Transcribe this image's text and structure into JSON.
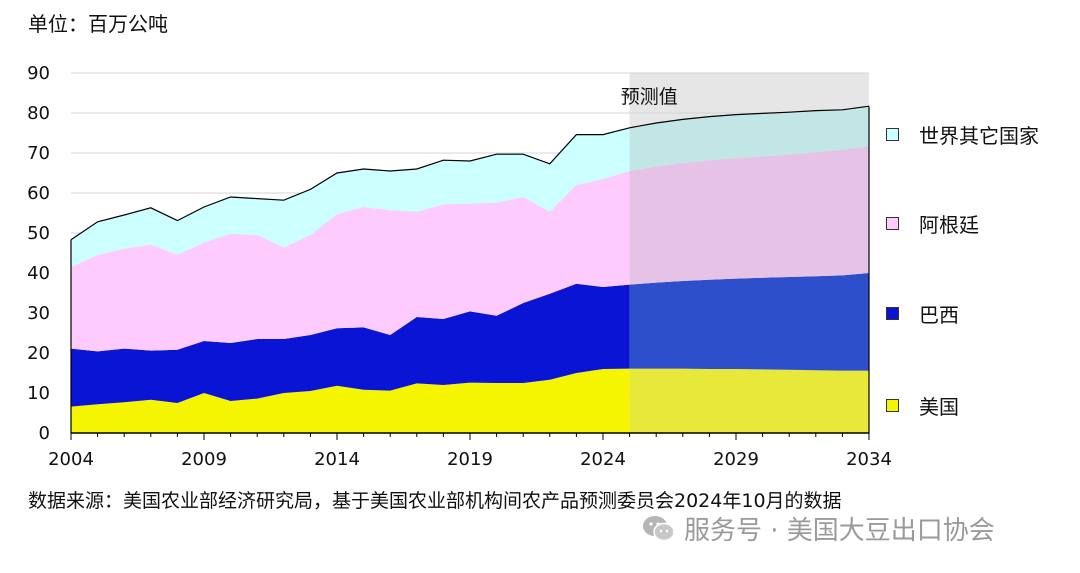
{
  "unit_label": "单位：百万公吨",
  "source_text": "数据来源：美国农业部经济研究局，基于美国农业部机构间农产品预测委员会2024年10月的数据",
  "watermark": {
    "text": "服务号 · 美国大豆出口协会",
    "icon": "wechat-icon"
  },
  "chart_data": {
    "type": "area",
    "stacked": true,
    "title": "",
    "unit": "单位：百万公吨",
    "x": [
      2004,
      2005,
      2006,
      2007,
      2008,
      2009,
      2010,
      2011,
      2012,
      2013,
      2014,
      2015,
      2016,
      2017,
      2018,
      2019,
      2020,
      2021,
      2022,
      2023,
      2024,
      2025,
      2026,
      2027,
      2028,
      2029,
      2030,
      2031,
      2032,
      2033,
      2034
    ],
    "xticks": [
      2004,
      2009,
      2014,
      2019,
      2024,
      2029,
      2034
    ],
    "yticks": [
      0,
      10,
      20,
      30,
      40,
      50,
      60,
      70,
      80,
      90
    ],
    "ylim": [
      0,
      90
    ],
    "xlim": [
      2004,
      2034
    ],
    "projection": {
      "label": "预测值",
      "start": 2025,
      "end": 2034
    },
    "series": [
      {
        "name": "美国",
        "color": "#f5f500",
        "proj_color": "#e8e83a",
        "values": [
          6.6,
          7.2,
          7.7,
          8.3,
          7.5,
          10.0,
          8.0,
          8.6,
          10.0,
          10.5,
          11.8,
          10.8,
          10.6,
          12.4,
          12.0,
          12.6,
          12.5,
          12.5,
          13.3,
          15.0,
          16.0,
          16.1,
          16.1,
          16.1,
          16.0,
          16.0,
          15.9,
          15.8,
          15.7,
          15.6,
          15.6
        ]
      },
      {
        "name": "巴西",
        "color": "#0a14d4",
        "proj_color": "#2e4fcc",
        "values": [
          14.5,
          13.2,
          13.4,
          12.3,
          13.3,
          13.0,
          14.5,
          14.9,
          13.5,
          14.0,
          14.4,
          15.6,
          13.9,
          16.6,
          16.5,
          17.8,
          16.8,
          20.0,
          21.5,
          22.3,
          20.5,
          21.0,
          21.5,
          21.9,
          22.3,
          22.6,
          22.9,
          23.2,
          23.5,
          23.8,
          24.4
        ]
      },
      {
        "name": "阿根廷",
        "color": "#fecbfe",
        "proj_color": "#e6c3e6",
        "values": [
          20.4,
          24.1,
          25.0,
          26.5,
          23.8,
          24.6,
          27.3,
          26.0,
          22.9,
          25.0,
          28.5,
          30.1,
          31.2,
          26.3,
          28.7,
          26.9,
          28.3,
          26.5,
          20.5,
          24.7,
          27.0,
          28.4,
          29.0,
          29.5,
          29.9,
          30.1,
          30.3,
          30.6,
          31.0,
          31.4,
          31.6
        ]
      },
      {
        "name": "世界其它国家",
        "color": "#ccffff",
        "proj_color": "#c2e6e6",
        "values": [
          6.8,
          8.3,
          8.4,
          9.2,
          8.5,
          8.9,
          9.2,
          9.1,
          11.8,
          11.4,
          10.3,
          9.5,
          9.8,
          10.7,
          11.0,
          10.7,
          12.1,
          10.7,
          12.0,
          12.6,
          11.1,
          10.8,
          10.9,
          10.9,
          10.9,
          10.9,
          10.8,
          10.6,
          10.4,
          10.0,
          10.1
        ]
      }
    ]
  }
}
